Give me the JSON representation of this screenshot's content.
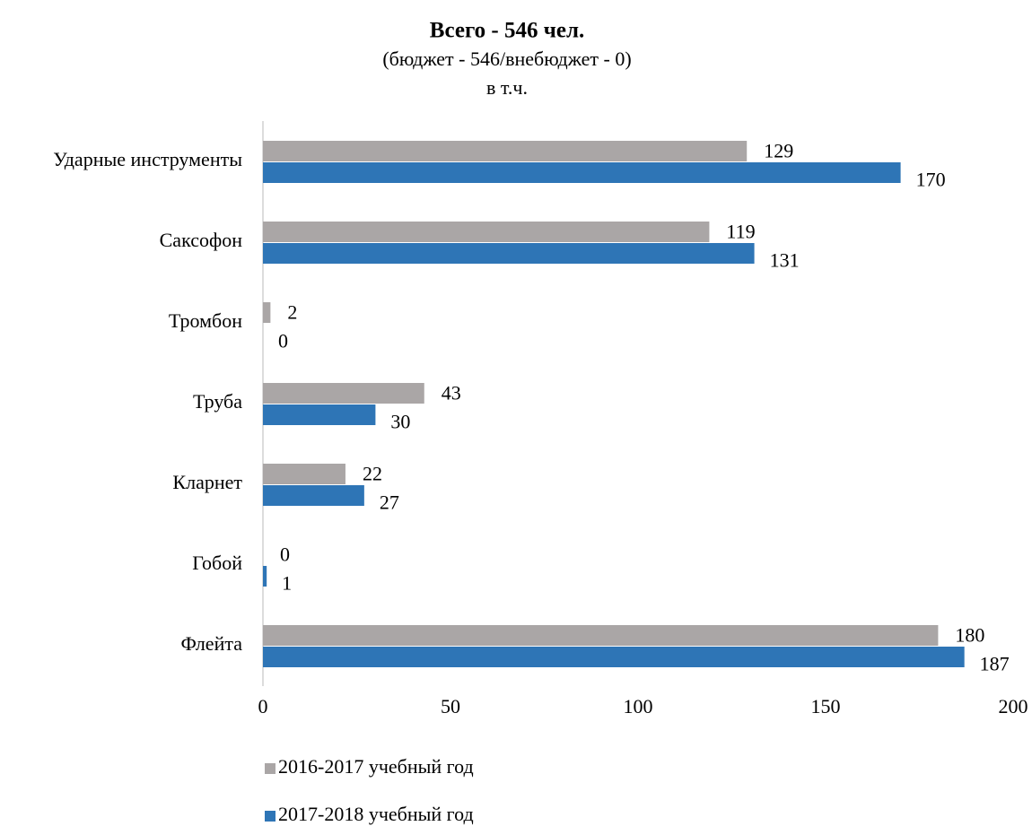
{
  "chart_data": {
    "type": "bar",
    "orientation": "horizontal",
    "title": "Всего - 546 чел.",
    "subtitle": [
      "(бюджет - 546/внебюджет - 0)",
      "в т.ч."
    ],
    "categories": [
      "Ударные инструменты",
      "Саксофон",
      "Тромбон",
      "Труба",
      "Кларнет",
      "Гобой",
      "Флейта"
    ],
    "series": [
      {
        "name": "2016-2017 учебный год",
        "color": "#aaa6a6",
        "values": [
          129,
          119,
          2,
          43,
          22,
          0,
          180
        ]
      },
      {
        "name": "2017-2018 учебный год",
        "color": "#2e75b6",
        "values": [
          170,
          131,
          0,
          30,
          27,
          1,
          187
        ]
      }
    ],
    "xlim": [
      0,
      200
    ],
    "xticks": [
      0,
      50,
      100,
      150,
      200
    ],
    "grid": false,
    "legend": "bottom"
  }
}
